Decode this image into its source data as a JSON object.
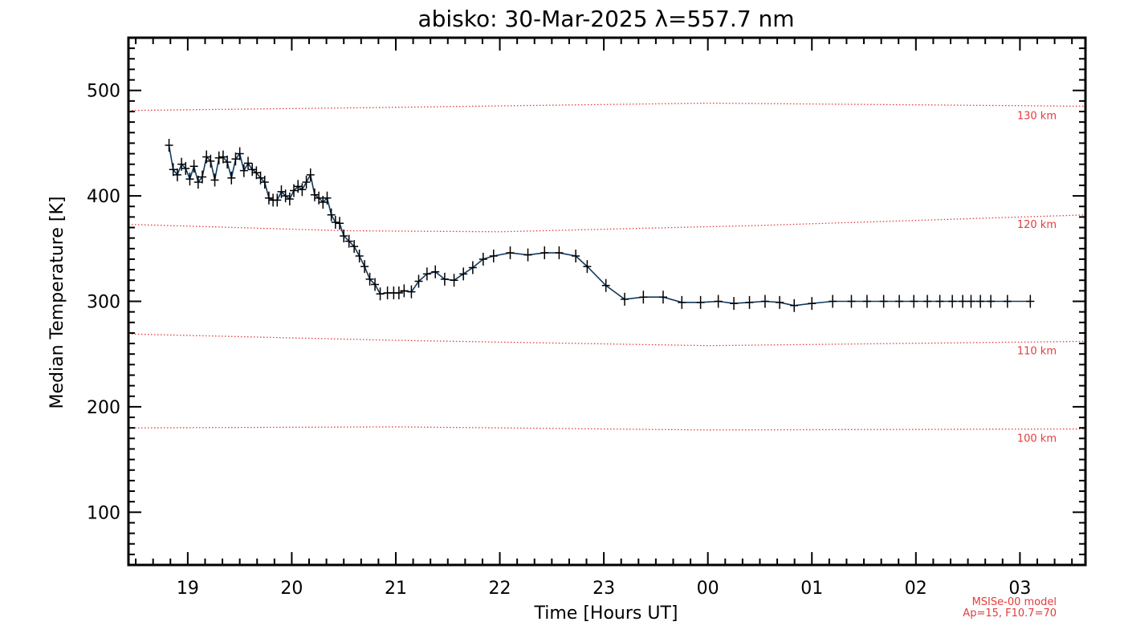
{
  "chart_data": {
    "type": "line",
    "title": "abisko: 30-Mar-2025 λ=557.7 nm",
    "xlabel": "Time [Hours UT]",
    "ylabel": "Median Temperature [K]",
    "x_ticks": [
      "19",
      "20",
      "21",
      "22",
      "23",
      "00",
      "01",
      "02",
      "03"
    ],
    "x_tick_hours": [
      19,
      20,
      21,
      22,
      23,
      24,
      25,
      26,
      27
    ],
    "xlim": [
      18.43,
      27.63
    ],
    "y_ticks": [
      100,
      200,
      300,
      400,
      500
    ],
    "ylim": [
      50,
      550
    ],
    "series": [
      {
        "x": [
          18.82,
          18.86,
          18.9,
          18.94,
          18.98,
          19.02,
          19.06,
          19.1,
          19.14,
          19.18,
          19.22,
          19.26,
          19.3,
          19.34,
          19.38,
          19.42,
          19.46,
          19.5,
          19.54,
          19.58,
          19.62,
          19.66,
          19.7,
          19.74,
          19.78,
          19.82,
          19.86,
          19.9,
          19.94,
          19.98,
          20.02,
          20.06,
          20.1,
          20.14,
          20.18,
          20.22,
          20.26,
          20.3,
          20.34,
          20.38,
          20.42,
          20.46,
          20.5,
          20.55,
          20.6,
          20.65,
          20.7,
          20.75,
          20.8,
          20.85,
          20.92,
          20.98,
          21.03,
          21.08,
          21.15,
          21.22,
          21.3,
          21.38,
          21.47,
          21.56,
          21.65,
          21.74,
          21.84,
          21.94,
          22.1,
          22.27,
          22.43,
          22.57,
          22.73,
          22.84,
          23.02,
          23.2,
          23.38,
          23.57,
          23.75,
          23.93,
          24.1,
          24.25,
          24.4,
          24.55,
          24.69,
          24.83,
          25.0,
          25.2,
          25.38,
          25.53,
          25.69,
          25.84,
          25.98,
          26.11,
          26.23,
          26.35,
          26.45,
          26.53,
          26.62,
          26.72,
          26.88,
          27.1
        ],
        "y": [
          448,
          425,
          420,
          430,
          426,
          416,
          428,
          413,
          418,
          437,
          433,
          415,
          436,
          437,
          432,
          417,
          435,
          440,
          424,
          431,
          425,
          422,
          417,
          413,
          398,
          396,
          396,
          404,
          400,
          397,
          405,
          409,
          406,
          413,
          420,
          401,
          398,
          394,
          398,
          382,
          375,
          374,
          362,
          357,
          352,
          343,
          333,
          321,
          316,
          307,
          308,
          308,
          308,
          310,
          309,
          319,
          326,
          328,
          321,
          320,
          326,
          332,
          340,
          343,
          346,
          344,
          346,
          346,
          343,
          333,
          315,
          302,
          304,
          304,
          299,
          299,
          300,
          298,
          299,
          300,
          299,
          296,
          298,
          300,
          300,
          300,
          300,
          300,
          300,
          300,
          300,
          300,
          300,
          300,
          300,
          300,
          300,
          300
        ]
      }
    ],
    "model_lines": [
      {
        "label": "130 km",
        "x": [
          18.43,
          21.0,
          24.0,
          27.63
        ],
        "y": [
          481,
          484,
          488,
          485
        ]
      },
      {
        "label": "120 km",
        "x": [
          18.43,
          20.5,
          22.0,
          24.5,
          27.63
        ],
        "y": [
          373,
          367,
          366,
          372,
          382
        ]
      },
      {
        "label": "110 km",
        "x": [
          18.43,
          21.0,
          24.0,
          27.63
        ],
        "y": [
          269,
          263,
          258,
          262
        ]
      },
      {
        "label": "100 km",
        "x": [
          18.43,
          21.0,
          24.0,
          27.63
        ],
        "y": [
          180,
          181,
          178,
          179
        ]
      }
    ],
    "model_note": [
      "MSISe-00 model",
      "Ap=15, F10.7=70"
    ],
    "colors": {
      "series": "#103a60",
      "model": "#e23c3c",
      "axes": "#000000"
    }
  }
}
